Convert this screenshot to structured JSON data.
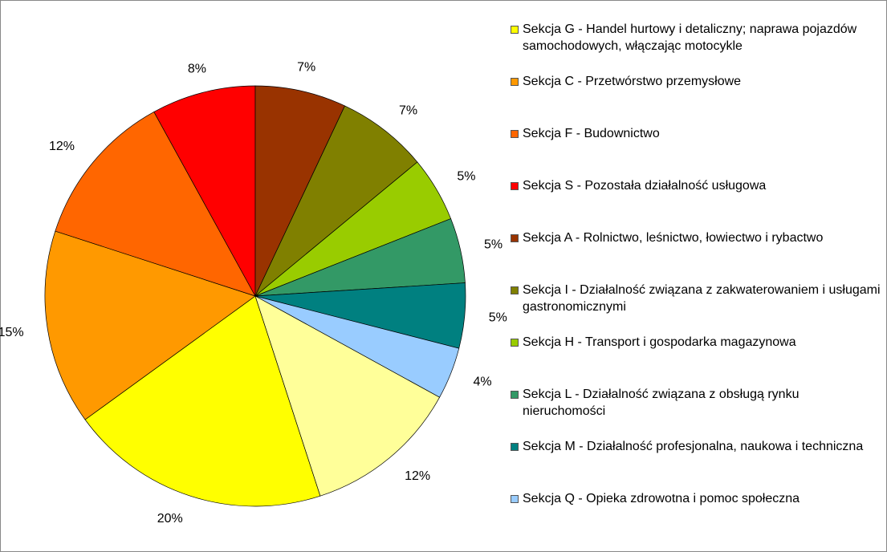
{
  "chart_data": {
    "type": "pie",
    "categories": [
      "Sekcja G - Handel hurtowy i detaliczny; naprawa pojazdów samochodowych, włączając motocykle",
      "Sekcja C - Przetwórstwo przemysłowe",
      "Sekcja F - Budownictwo",
      "Sekcja S - Pozostała działalność usługowa",
      "Sekcja A - Rolnictwo, leśnictwo, łowiectwo i rybactwo",
      "Sekcja I - Działalność związana z zakwaterowaniem i usługami gastronomicznymi",
      "Sekcja H - Transport i gospodarka magazynowa",
      "Sekcja L - Działalność związana z obsługą rynku nieruchomości",
      "Sekcja M - Działalność profesjonalna, naukowa i techniczna",
      "Sekcja Q - Opieka zdrowotna i pomoc społeczna",
      null
    ],
    "values": [
      20,
      15,
      12,
      8,
      7,
      7,
      5,
      5,
      5,
      4,
      12
    ],
    "value_labels": [
      "20%",
      "15%",
      "12%",
      "8%",
      "7%",
      "7%",
      "5%",
      "5%",
      "5%",
      "4%",
      "12%"
    ],
    "colors": [
      "#ffff00",
      "#ff9900",
      "#ff6600",
      "#ff0000",
      "#993300",
      "#808000",
      "#99cc00",
      "#339966",
      "#008080",
      "#99ccff",
      "#ffff99"
    ],
    "start_angle": 162,
    "legend": "right"
  }
}
